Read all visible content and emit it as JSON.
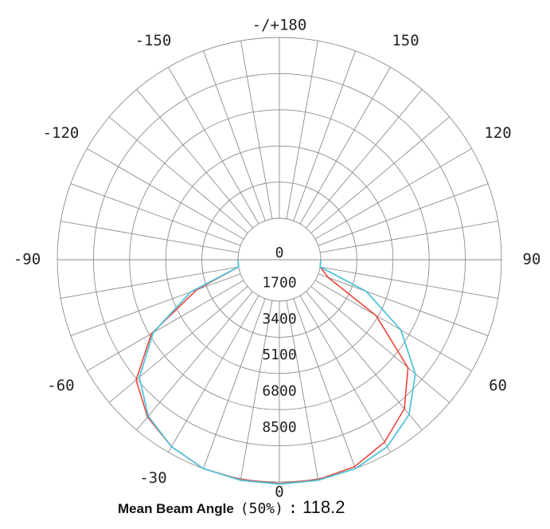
{
  "chart_data": {
    "type": "polar-line",
    "angle_labels": [
      {
        "angle": 180,
        "text": "-/+180"
      },
      {
        "angle": -150,
        "text": "-150"
      },
      {
        "angle": 150,
        "text": "150"
      },
      {
        "angle": -120,
        "text": "-120"
      },
      {
        "angle": 120,
        "text": "120"
      },
      {
        "angle": -90,
        "text": "-90"
      },
      {
        "angle": 90,
        "text": "90"
      },
      {
        "angle": -60,
        "text": "-60"
      },
      {
        "angle": 60,
        "text": "60"
      },
      {
        "angle": -30,
        "text": "-30"
      },
      {
        "angle": 0,
        "text": "0"
      }
    ],
    "radial_ticks": [
      "0",
      "1700",
      "3400",
      "5100",
      "6800",
      "8500"
    ],
    "r_range": [
      -1700,
      8500
    ],
    "grid_angle_step": 10,
    "series": [
      {
        "color": "#e8463a",
        "points": [
          [
            -90,
            0
          ],
          [
            -80,
            0
          ],
          [
            -70,
            2200
          ],
          [
            -60,
            5000
          ],
          [
            -50,
            6850
          ],
          [
            -40,
            7700
          ],
          [
            -30,
            8200
          ],
          [
            -20,
            8500
          ],
          [
            -10,
            8550
          ],
          [
            0,
            8570
          ],
          [
            10,
            8550
          ],
          [
            20,
            8400
          ],
          [
            30,
            7950
          ],
          [
            40,
            7200
          ],
          [
            50,
            5950
          ],
          [
            60,
            3300
          ],
          [
            70,
            500
          ],
          [
            80,
            0
          ],
          [
            90,
            0
          ]
        ]
      },
      {
        "color": "#7cc96a",
        "points": [
          [
            -90,
            0
          ],
          [
            -80,
            0
          ],
          [
            -70,
            2500
          ],
          [
            -60,
            4900
          ],
          [
            -50,
            6650
          ],
          [
            -40,
            7650
          ],
          [
            -30,
            8200
          ],
          [
            -20,
            8500
          ],
          [
            -10,
            8580
          ],
          [
            0,
            8600
          ],
          [
            10,
            8580
          ],
          [
            20,
            8500
          ],
          [
            30,
            8200
          ],
          [
            40,
            7550
          ],
          [
            50,
            6400
          ],
          [
            60,
            4650
          ],
          [
            70,
            2400
          ],
          [
            80,
            0
          ],
          [
            90,
            0
          ]
        ]
      },
      {
        "color": "#4ec2e6",
        "points": [
          [
            -90,
            0
          ],
          [
            -80,
            0
          ],
          [
            -70,
            2500
          ],
          [
            -60,
            4900
          ],
          [
            -50,
            6650
          ],
          [
            -40,
            7650
          ],
          [
            -30,
            8200
          ],
          [
            -20,
            8500
          ],
          [
            -10,
            8580
          ],
          [
            0,
            8600
          ],
          [
            10,
            8580
          ],
          [
            20,
            8500
          ],
          [
            30,
            8200
          ],
          [
            40,
            7550
          ],
          [
            50,
            6400
          ],
          [
            60,
            4650
          ],
          [
            70,
            2400
          ],
          [
            80,
            0
          ],
          [
            90,
            0
          ]
        ]
      }
    ]
  },
  "footer": {
    "label": "Mean Beam Angle",
    "percent": "(50%)",
    "separator": ":",
    "value": "118.2"
  }
}
